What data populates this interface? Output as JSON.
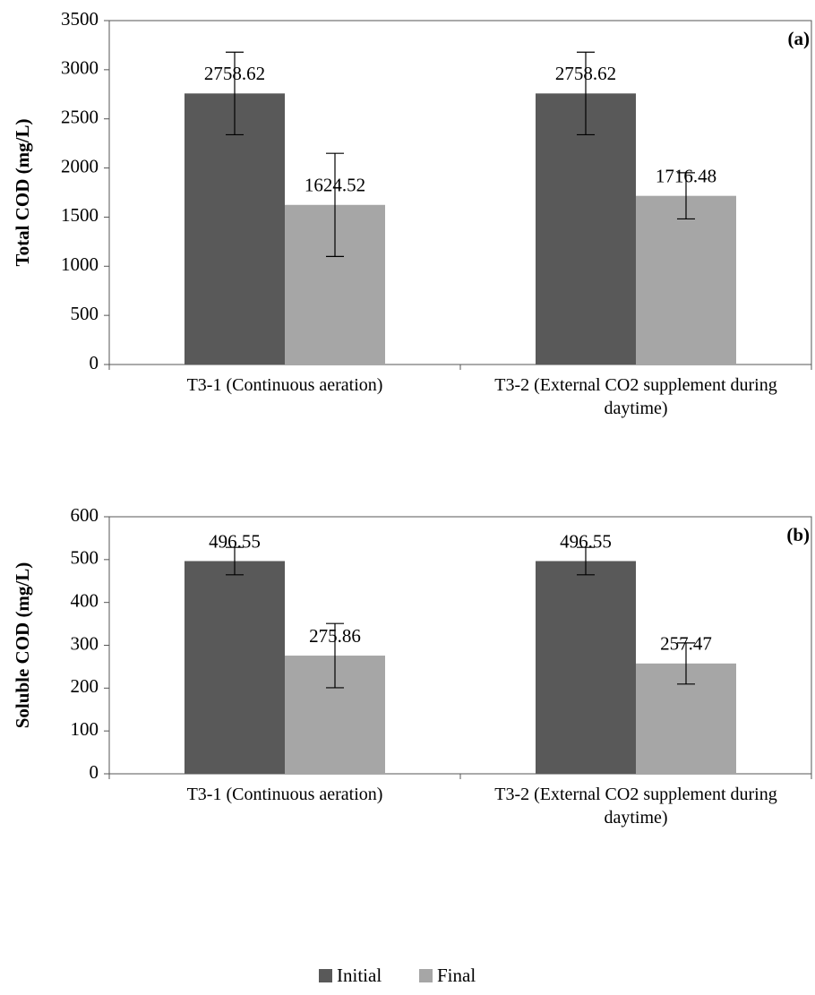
{
  "legend": [
    {
      "name": "Initial",
      "color": "#595959"
    },
    {
      "name": "Final",
      "color": "#a6a6a6"
    }
  ],
  "chart_data": [
    {
      "type": "bar",
      "label": "(a)",
      "ylabel": "Total COD (mg/L)",
      "categories": [
        "T3-1 (Continuous aeration)",
        "T3-2 (External CO2 supplement during daytime)"
      ],
      "series": [
        {
          "values": [
            2758.62,
            2758.62
          ],
          "errors": [
            420,
            420
          ]
        },
        {
          "values": [
            1624.52,
            1716.48
          ],
          "errors": [
            525,
            235
          ]
        }
      ],
      "ylim": [
        0,
        3500
      ],
      "yticks": [
        0,
        500,
        1000,
        1500,
        2000,
        2500,
        3000,
        3500
      ]
    },
    {
      "type": "bar",
      "label": "(b)",
      "ylabel": "Soluble COD (mg/L)",
      "categories": [
        "T3-1 (Continuous aeration)",
        "T3-2 (External CO2 supplement during daytime)"
      ],
      "series": [
        {
          "values": [
            496.55,
            496.55
          ],
          "errors": [
            32,
            32
          ]
        },
        {
          "values": [
            275.86,
            257.47
          ],
          "errors": [
            75,
            48
          ]
        }
      ],
      "ylim": [
        0,
        600
      ],
      "yticks": [
        0,
        100,
        200,
        300,
        400,
        500,
        600
      ]
    }
  ]
}
